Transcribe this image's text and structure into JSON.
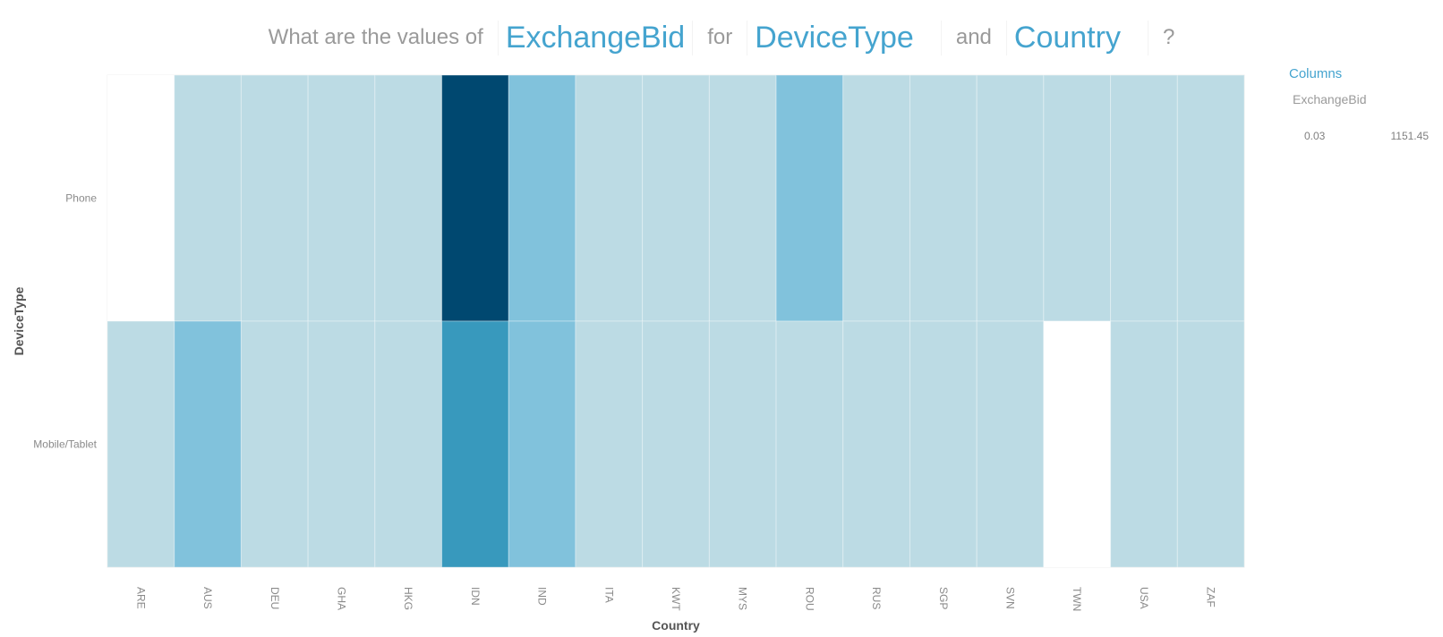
{
  "question": {
    "prefix": "What are the values of",
    "measure": "ExchangeBid",
    "for": "for",
    "dim1": "DeviceType",
    "and": "and",
    "dim2": "Country",
    "suffix": "?"
  },
  "legend": {
    "title": "Columns",
    "measure": "ExchangeBid",
    "min_label": "0.03",
    "max_label": "1151.45"
  },
  "colors": {
    "level_low": "#bcdbe4",
    "level_mid": "#81c2dc",
    "level_high": "#3899bd",
    "level_max": "#004870",
    "empty": "#ffffff",
    "axis_text": "#8a8a8a",
    "axis_title": "#555555"
  },
  "chart_data": {
    "type": "heatmap",
    "xlabel": "Country",
    "ylabel": "DeviceType",
    "x": [
      "ARE",
      "AUS",
      "DEU",
      "GHA",
      "HKG",
      "IDN",
      "IND",
      "ITA",
      "KWT",
      "MYS",
      "ROU",
      "RUS",
      "SGP",
      "SVN",
      "TWN",
      "USA",
      "ZAF"
    ],
    "y": [
      "Phone",
      "Mobile/Tablet"
    ],
    "color_range": [
      0.03,
      1151.45
    ],
    "values": [
      [
        null,
        30,
        30,
        30,
        30,
        1151.45,
        280,
        30,
        30,
        30,
        280,
        30,
        30,
        30,
        30,
        30,
        30
      ],
      [
        30,
        280,
        30,
        30,
        30,
        620,
        280,
        30,
        30,
        30,
        30,
        30,
        30,
        30,
        null,
        30,
        30
      ]
    ]
  }
}
